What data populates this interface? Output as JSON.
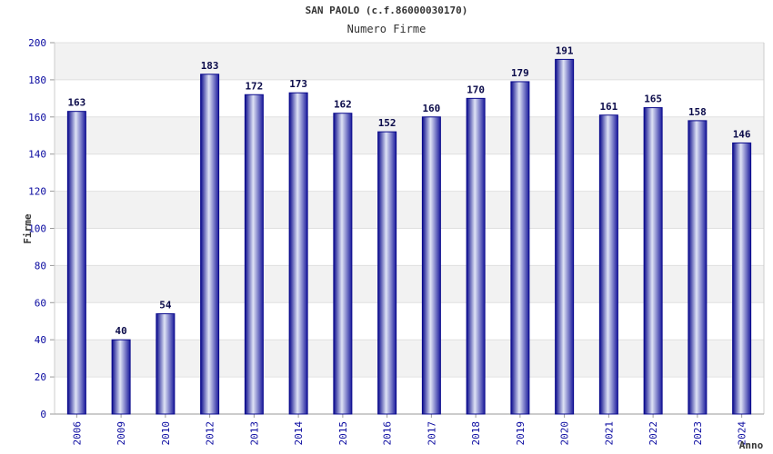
{
  "title": "SAN PAOLO (c.f.86000030170)",
  "subtitle": "Numero Firme",
  "chart_data": {
    "type": "bar",
    "title": "SAN PAOLO (c.f.86000030170)",
    "subtitle": "Numero Firme",
    "xlabel": "Anno",
    "ylabel": "Firme",
    "categories": [
      "2006",
      "2009",
      "2010",
      "2012",
      "2013",
      "2014",
      "2015",
      "2016",
      "2017",
      "2018",
      "2019",
      "2020",
      "2021",
      "2022",
      "2023",
      "2024"
    ],
    "values": [
      163,
      40,
      54,
      183,
      172,
      173,
      162,
      152,
      160,
      170,
      179,
      191,
      161,
      165,
      158,
      146
    ],
    "ylim": [
      0,
      200
    ],
    "yticks": [
      0,
      20,
      40,
      60,
      80,
      100,
      120,
      140,
      160,
      180,
      200
    ],
    "grid": true,
    "colors": {
      "bar_edge": "#0a0a8c",
      "bar_light": "#dfe3f5",
      "bar_dark": "#1a1a9c",
      "tick_text": "#0a0aa0",
      "band": "#f2f2f2"
    }
  }
}
